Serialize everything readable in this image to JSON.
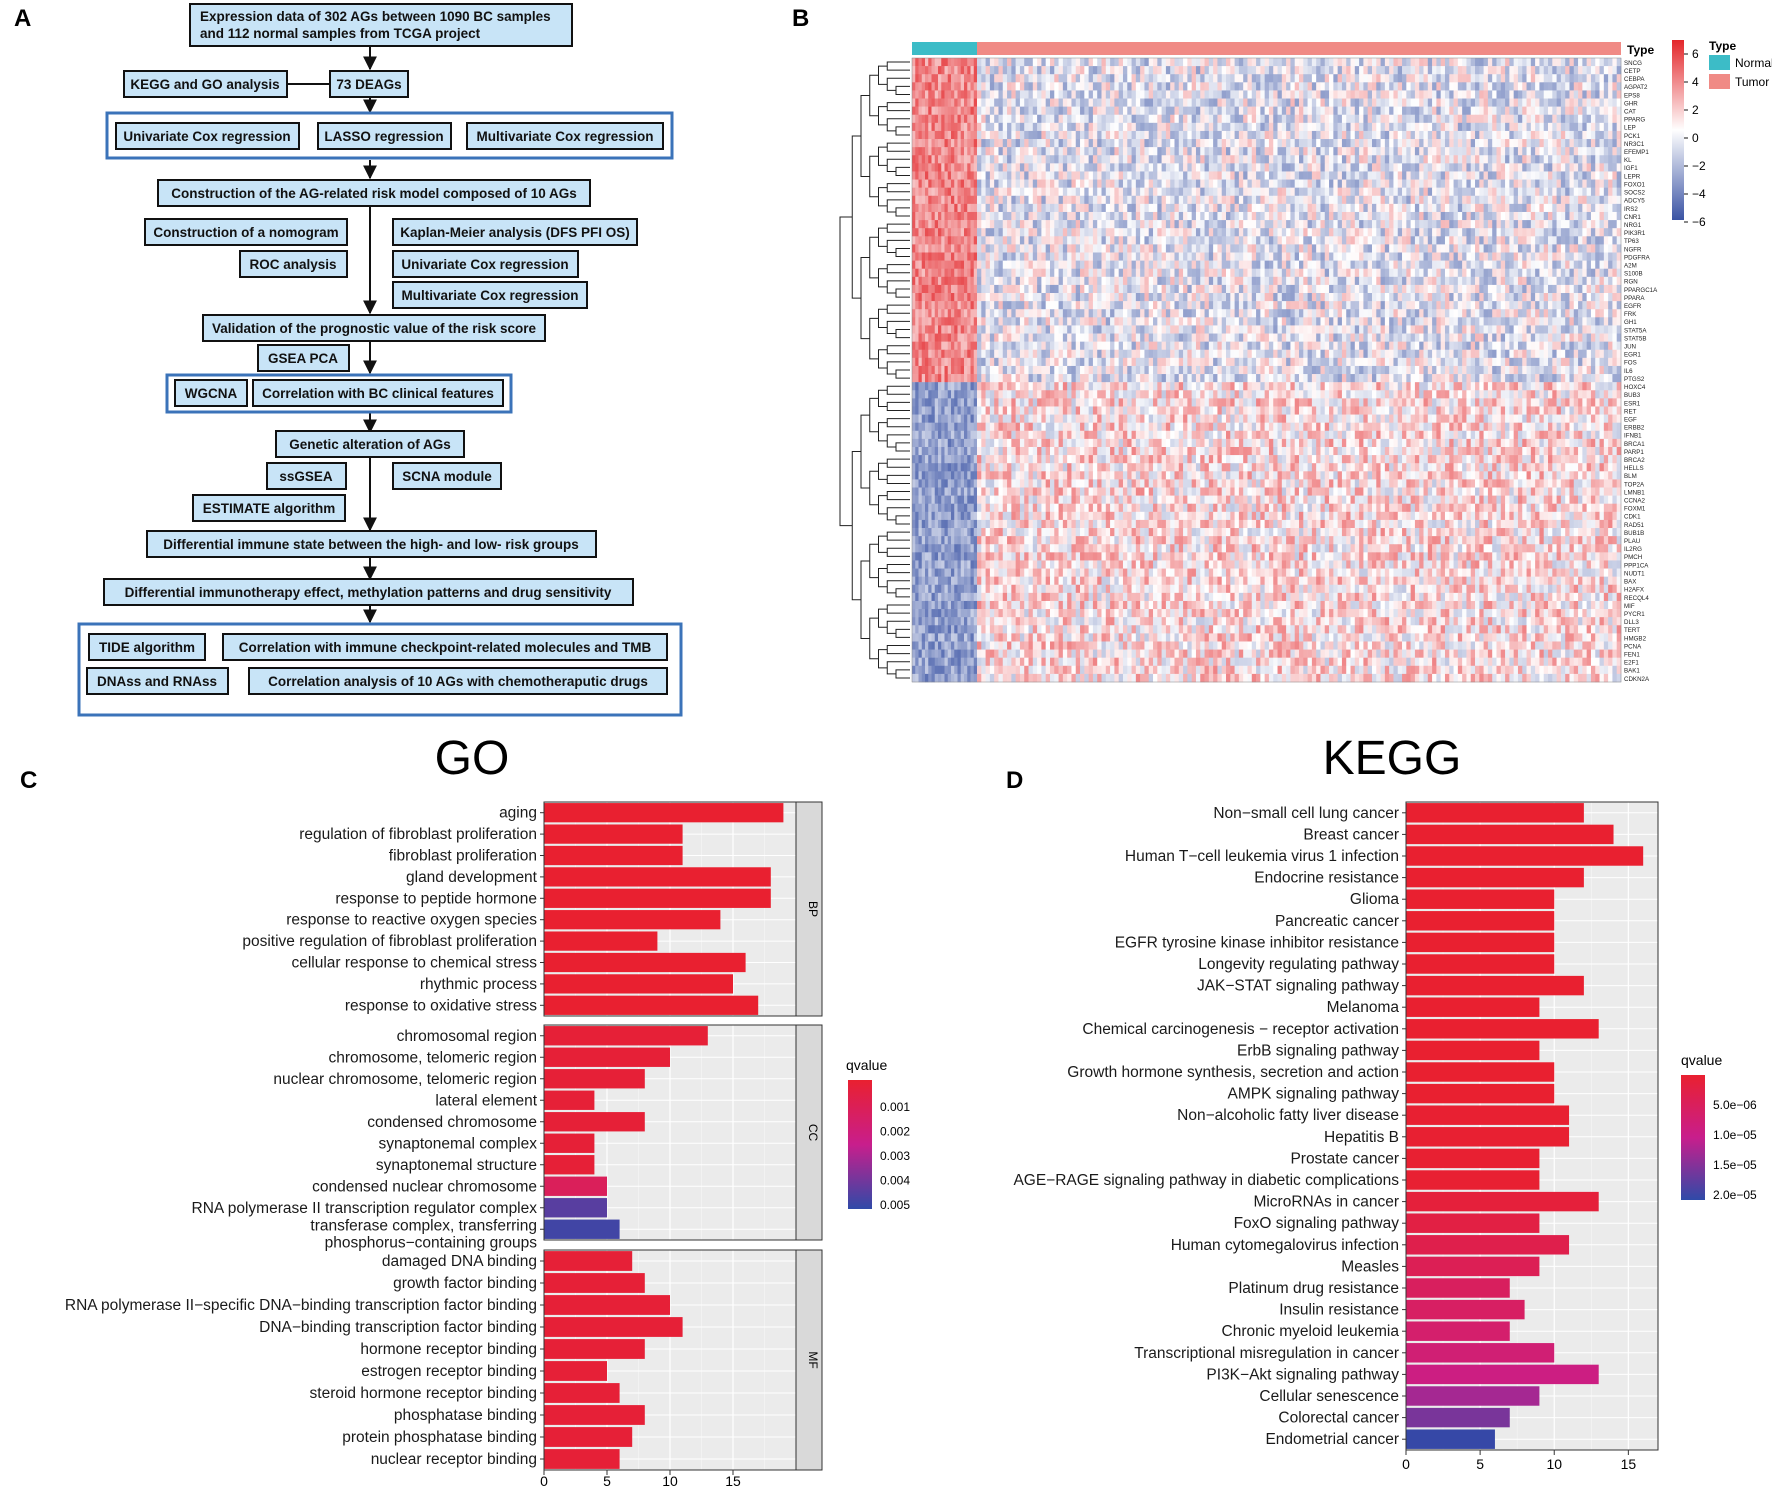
{
  "panels": {
    "a": "A",
    "b": "B",
    "c": "C",
    "d": "D"
  },
  "flowchart": {
    "n1_line1": "Expression data of 302 AGs between 1090 BC samples",
    "n1_line2": "and 112 normal samples from TCGA project",
    "kegg_go": "KEGG and GO analysis",
    "deags": "73 DEAGs",
    "univariate": "Univariate Cox regression",
    "lasso": "LASSO regression",
    "multivariate": "Multivariate Cox regression",
    "construction": "Construction of the AG-related risk model composed of 10 AGs",
    "nomogram": "Construction of a nomogram",
    "roc": "ROC analysis",
    "km": "Kaplan-Meier analysis (DFS PFI OS)",
    "univariate2": "Univariate Cox regression",
    "multivariate2": "Multivariate Cox regression",
    "validation": "Validation of the prognostic value of the risk score",
    "gsea_pca": "GSEA PCA",
    "wgcna": "WGCNA",
    "clinical": "Correlation with BC clinical features",
    "genetic": "Genetic alteration of AGs",
    "ssgsea": "ssGSEA",
    "scna": "SCNA module",
    "estimate": "ESTIMATE algorithm",
    "immune_state": "Differential immune state between the high- and low- risk groups",
    "immunotherapy": "Differential immunotherapy effect, methylation patterns and drug sensitivity",
    "tide": "TIDE algorithm",
    "checkpoint": "Correlation with immune checkpoint-related molecules and TMB",
    "dnass": "DNAss and RNAss",
    "chemo": "Correlation analysis of 10 AGs with chemotheraputic drugs"
  },
  "heatmap": {
    "genes": [
      "SNCG",
      "CETP",
      "CEBPA",
      "AGPAT2",
      "EPS8",
      "GHR",
      "CAT",
      "PPARG",
      "LEP",
      "PCK1",
      "NR3C1",
      "EFEMP1",
      "KL",
      "IGF1",
      "LEPR",
      "FOXO1",
      "SOCS2",
      "ADCY5",
      "IRS2",
      "CNR1",
      "NRG1",
      "PIK3R1",
      "TP63",
      "NGFR",
      "PDGFRA",
      "A2M",
      "S100B",
      "RGN",
      "PPARGC1A",
      "PPARA",
      "EGFR",
      "FRK",
      "GH1",
      "STAT5A",
      "STAT5B",
      "JUN",
      "EGR1",
      "FOS",
      "IL6",
      "PTGS2",
      "HOXC4",
      "BUB3",
      "ESR1",
      "RET",
      "EGF",
      "ERBB2",
      "IFNB1",
      "BRCA1",
      "PARP1",
      "BRCA2",
      "HELLS",
      "BLM",
      "TOP2A",
      "LMNB1",
      "CCNA2",
      "FOXM1",
      "CDK1",
      "RAD51",
      "BUB1B",
      "PLAU",
      "IL2RG",
      "PMCH",
      "PPP1CA",
      "NUDT1",
      "BAX",
      "H2AFX",
      "RECQL4",
      "MIF",
      "PYCR1",
      "DLL3",
      "TERT",
      "HMGB2",
      "PCNA",
      "FEN1",
      "E2F1",
      "BAK1",
      "CDKN2A"
    ],
    "type_label": "Type",
    "legend_title": "Type",
    "normal_label": "Normal",
    "tumor_label": "Tumor",
    "colorbar_ticks": [
      "6",
      "4",
      "2",
      "0",
      "−2",
      "−4",
      "−6"
    ],
    "colors": {
      "normal": "#3cbcc7",
      "tumor": "#f08a85",
      "high": "#e3262a",
      "low": "#3a53a4"
    }
  },
  "chart_data": [
    {
      "type": "bar",
      "title": "GO",
      "xlabel": "",
      "ylabel": "",
      "xlim": [
        0,
        20
      ],
      "xticks": [
        "0",
        "5",
        "10",
        "15"
      ],
      "legend_title": "qvalue",
      "legend_ticks": [
        "0.001",
        "0.002",
        "0.003",
        "0.004",
        "0.005"
      ],
      "facets": [
        {
          "name": "BP",
          "categories": [
            "aging",
            "regulation of fibroblast proliferation",
            "fibroblast proliferation",
            "gland development",
            "response to peptide hormone",
            "response to reactive oxygen species",
            "positive regulation of fibroblast proliferation",
            "cellular response to chemical stress",
            "rhythmic process",
            "response to oxidative stress"
          ],
          "values": [
            19,
            11,
            11,
            18,
            18,
            14,
            9,
            16,
            15,
            17
          ],
          "qvalues": [
            0.0003,
            0.0003,
            0.0003,
            0.0003,
            0.0003,
            0.0003,
            0.0003,
            0.0003,
            0.0003,
            0.0003
          ]
        },
        {
          "name": "CC",
          "categories": [
            "chromosomal region",
            "chromosome, telomeric region",
            "nuclear chromosome, telomeric region",
            "lateral element",
            "condensed chromosome",
            "synaptonemal complex",
            "synaptonemal structure",
            "condensed nuclear chromosome",
            "RNA polymerase II transcription regulator complex",
            "transferase complex, transferring phosphorus−containing groups"
          ],
          "values": [
            13,
            10,
            8,
            4,
            8,
            4,
            4,
            5,
            5,
            6
          ],
          "qvalues": [
            0.0005,
            0.0005,
            0.0005,
            0.0005,
            0.0005,
            0.0005,
            0.0005,
            0.0015,
            0.0048,
            0.0052
          ]
        },
        {
          "name": "MF",
          "categories": [
            "damaged DNA binding",
            "growth factor binding",
            "RNA polymerase II−specific DNA−binding transcription factor binding",
            "DNA−binding transcription factor binding",
            "hormone receptor binding",
            "estrogen receptor binding",
            "steroid hormone receptor binding",
            "phosphatase binding",
            "protein phosphatase binding",
            "nuclear receptor binding"
          ],
          "values": [
            7,
            8,
            10,
            11,
            8,
            5,
            6,
            8,
            7,
            6
          ],
          "qvalues": [
            0.0005,
            0.0005,
            0.0005,
            0.0005,
            0.0005,
            0.0005,
            0.0005,
            0.0005,
            0.0005,
            0.0005
          ]
        }
      ]
    },
    {
      "type": "bar",
      "title": "KEGG",
      "xlabel": "",
      "ylabel": "",
      "xlim": [
        0,
        17
      ],
      "xticks": [
        "0",
        "5",
        "10",
        "15"
      ],
      "legend_title": "qvalue",
      "legend_ticks": [
        "5.0e−06",
        "1.0e−05",
        "1.5e−05",
        "2.0e−05"
      ],
      "categories": [
        "Non−small cell lung cancer",
        "Breast cancer",
        "Human T−cell leukemia virus 1 infection",
        "Endocrine resistance",
        "Glioma",
        "Pancreatic cancer",
        "EGFR tyrosine kinase inhibitor resistance",
        "Longevity regulating pathway",
        "JAK−STAT signaling pathway",
        "Melanoma",
        "Chemical carcinogenesis − receptor activation",
        "ErbB signaling pathway",
        "Growth hormone synthesis, secretion and action",
        "AMPK signaling pathway",
        "Non−alcoholic fatty liver disease",
        "Hepatitis B",
        "Prostate cancer",
        "AGE−RAGE signaling pathway in diabetic complications",
        "MicroRNAs in cancer",
        "FoxO signaling pathway",
        "Human cytomegalovirus infection",
        "Measles",
        "Platinum drug resistance",
        "Insulin resistance",
        "Chronic myeloid leukemia",
        "Transcriptional misregulation in cancer",
        "PI3K−Akt signaling pathway",
        "Cellular senescence",
        "Colorectal cancer",
        "Endometrial cancer"
      ],
      "values": [
        12,
        14,
        16,
        12,
        10,
        10,
        10,
        10,
        12,
        9,
        13,
        9,
        10,
        10,
        11,
        11,
        9,
        9,
        13,
        9,
        11,
        9,
        7,
        8,
        7,
        10,
        13,
        9,
        7,
        6
      ],
      "qvalues": [
        3e-07,
        3e-07,
        3e-07,
        3e-07,
        3e-07,
        3e-07,
        3e-07,
        3e-07,
        3e-07,
        3e-07,
        3e-07,
        3e-07,
        3e-07,
        3e-07,
        5e-07,
        5e-07,
        5e-07,
        5e-07,
        1.5e-06,
        2.5e-06,
        3.5e-06,
        4.5e-06,
        5.5e-06,
        6e-06,
        7e-06,
        8e-06,
        9.5e-06,
        1.3e-05,
        1.6e-05,
        2.05e-05
      ]
    }
  ]
}
